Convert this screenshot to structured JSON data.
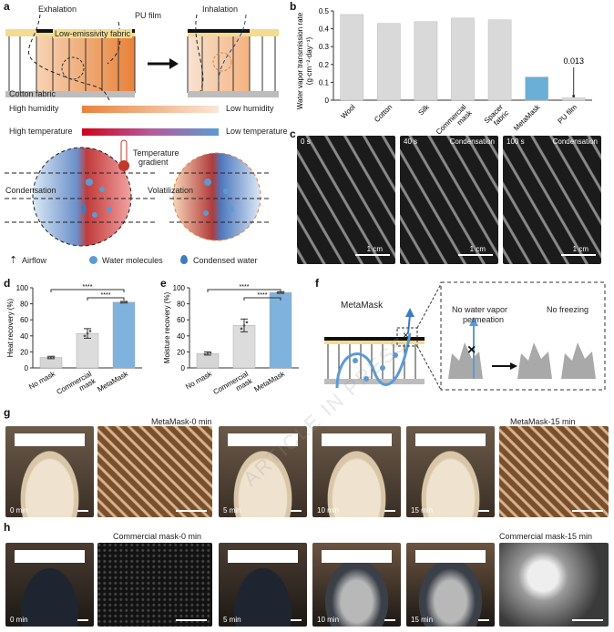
{
  "panels": {
    "a": "a",
    "b": "b",
    "c": "c",
    "d": "d",
    "e": "e",
    "f": "f",
    "g": "g",
    "h": "h"
  },
  "panel_a": {
    "exhalation": "Exhalation",
    "inhalation": "Inhalation",
    "pu_film": "PU film",
    "low_e_fabric": "Low-emissivity fabric",
    "cotton_fabric": "Cotton fabric",
    "high_humidity": "High humidity",
    "low_humidity": "Low humidity",
    "high_temperature": "High temperature",
    "low_temperature": "Low temperature",
    "temperature_gradient_1": "Temperature",
    "temperature_gradient_2": "gradient",
    "condensation": "Condensation",
    "volatilization": "Volatilization",
    "legend_airflow": "Airflow",
    "legend_water_molecules": "Water molecules",
    "legend_condensed_water": "Condensed water"
  },
  "panel_c": {
    "times": [
      "0 s",
      "40 s",
      "100 s"
    ],
    "labels": [
      "",
      "Condensation",
      "Condensation"
    ],
    "scale": "1 cm"
  },
  "panel_f": {
    "title": "MetaMask",
    "no_vapor_1": "No water vapor",
    "no_vapor_2": "permeation",
    "no_freezing": "No freezing"
  },
  "panel_g": {
    "title_left": "MetaMask-0 min",
    "title_right": "MetaMask-15 min",
    "times": [
      "0 min",
      "5 min",
      "10 min",
      "15 min"
    ]
  },
  "panel_h": {
    "title_left": "Commercial mask-0 min",
    "title_right": "Commercial mask-15 min",
    "times": [
      "0 min",
      "5 min",
      "10 min",
      "15 min"
    ]
  },
  "watermark": "ARTICLE IN PRESS",
  "colors": {
    "orange": "#e8823a",
    "blue": "#5b9bd5",
    "red": "#c0392b",
    "bar_gray": "#d9d9d9",
    "bar_blue": "#6baed6",
    "box_blue": "#7fb2dc"
  },
  "chart_data": [
    {
      "id": "b",
      "type": "bar",
      "categories": [
        "Wool",
        "Cotton",
        "Silk",
        "Commercial mask",
        "Spacer fabric",
        "MetaMask",
        "PU film"
      ],
      "tick_labels": [
        [
          "Wool"
        ],
        [
          "Cotton"
        ],
        [
          "Silk"
        ],
        [
          "Commercial",
          "mask"
        ],
        [
          "Spacer",
          "fabric"
        ],
        [
          "MetaMask"
        ],
        [
          "PU film"
        ]
      ],
      "values": [
        0.48,
        0.43,
        0.44,
        0.46,
        0.45,
        0.13,
        0.013
      ],
      "annotation": "0.013",
      "ylabel_1": "Water vapor transmission rate",
      "ylabel_2": "(g·cm⁻²·day⁻¹)",
      "ylim": [
        0,
        0.5
      ],
      "yticks": [
        "0",
        "0.1",
        "0.2",
        "0.3",
        "0.4",
        "0.5"
      ],
      "ytick_values": [
        0,
        0.1,
        0.2,
        0.3,
        0.4,
        0.5
      ]
    },
    {
      "id": "d",
      "type": "bar",
      "categories": [
        "No mask",
        "Commercial mask",
        "MetaMask"
      ],
      "tick_labels": [
        [
          "No mask"
        ],
        [
          "Commercial",
          "mask"
        ],
        [
          "MetaMask"
        ]
      ],
      "values": [
        13,
        43,
        82
      ],
      "errors": [
        1.5,
        6,
        1
      ],
      "ylabel": "Heat recovery (%)",
      "ylim": [
        0,
        100
      ],
      "yticks": [
        "0",
        "20",
        "40",
        "60",
        "80",
        "100"
      ],
      "ytick_values": [
        0,
        20,
        40,
        60,
        80,
        100
      ],
      "significance": [
        "****",
        "****"
      ]
    },
    {
      "id": "e",
      "type": "bar",
      "categories": [
        "No mask",
        "Commercial mask",
        "MetaMask"
      ],
      "tick_labels": [
        [
          "No mask"
        ],
        [
          "Commercial",
          "mask"
        ],
        [
          "MetaMask"
        ]
      ],
      "values": [
        18,
        53,
        94
      ],
      "errors": [
        2,
        8,
        1
      ],
      "ylabel": "Moisture recovery (%)",
      "ylim": [
        0,
        100
      ],
      "yticks": [
        "0",
        "20",
        "40",
        "60",
        "80",
        "100"
      ],
      "ytick_values": [
        0,
        20,
        40,
        60,
        80,
        100
      ],
      "significance": [
        "****",
        "****"
      ]
    }
  ]
}
